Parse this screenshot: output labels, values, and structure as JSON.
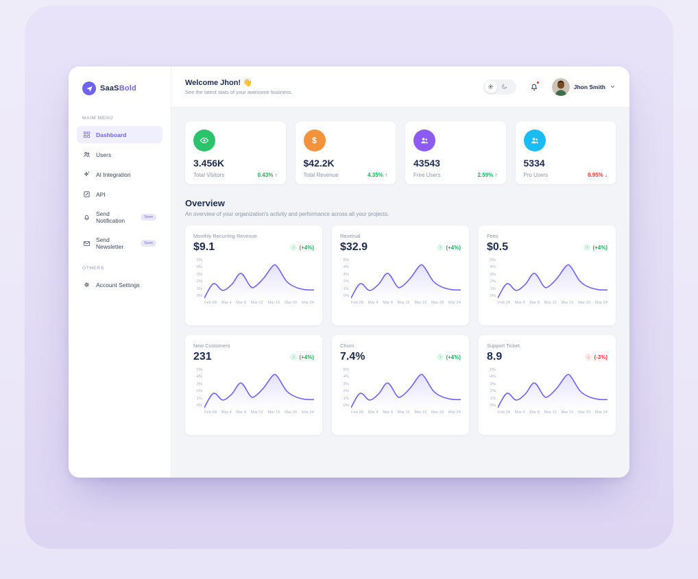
{
  "brand": {
    "name_bold": "SaaS",
    "name_light": "Bold"
  },
  "sidebar": {
    "section_main": "MAIM MENU",
    "section_others": "OTHERS",
    "items": [
      {
        "label": "Dashboard"
      },
      {
        "label": "Users"
      },
      {
        "label": "AI Integration"
      },
      {
        "label": "API"
      },
      {
        "label": "Send Notification",
        "badge": "Soon"
      },
      {
        "label": "Send Newsletter",
        "badge": "Soon"
      }
    ],
    "others_items": [
      {
        "label": "Account Settings"
      }
    ]
  },
  "header": {
    "welcome": "Welcome Jhon! 👋",
    "subtitle": "See the latest stats of your awesome business.",
    "user": {
      "name": "Jhon Smith"
    }
  },
  "stats": [
    {
      "value": "3.456K",
      "label": "Total Visitors",
      "change": "0.43%",
      "arrow": "↑",
      "trend": "up",
      "icon": "eye",
      "icon_color": "#2BC46C"
    },
    {
      "value": "$42.2K",
      "label": "Total Revenue",
      "change": "4.35%",
      "arrow": "↑",
      "trend": "up",
      "icon": "dollar",
      "icon_color": "#F2923A"
    },
    {
      "value": "43543",
      "label": "Free Users",
      "change": "2.59%",
      "arrow": "↑",
      "trend": "up",
      "icon": "users-group",
      "icon_color": "#8C5CF2"
    },
    {
      "value": "5334",
      "label": "Pro Users",
      "change": "0.95%",
      "arrow": "↓",
      "trend": "down",
      "icon": "users-group",
      "icon_color": "#1CBBF2"
    }
  ],
  "overview": {
    "title": "Overview",
    "subtitle": "An overview of your organization's activity and performance across all your projects."
  },
  "chart_colors": {
    "line": "#7266F0",
    "fill": "rgba(114,102,240,0.18)"
  },
  "chart_data": [
    {
      "type": "area",
      "title": "Monthly Recurring Revenue",
      "value": "$9.1",
      "change": "(+4%)",
      "arrow": "↑",
      "trend": "up",
      "x_ticks": [
        "Feb 28",
        "Mar 4",
        "Mar 8",
        "Mar 12",
        "Mar 16",
        "Mar 20",
        "Mar 24"
      ],
      "y_ticks": [
        "5%",
        "4%",
        "3%",
        "2%",
        "1%",
        "0%"
      ],
      "x_days": [
        0,
        2,
        4,
        6,
        8,
        10,
        11,
        13,
        15,
        16,
        18,
        20,
        22,
        24
      ],
      "values": [
        0.1,
        1.9,
        1.05,
        1.8,
        3.2,
        1.6,
        1.5,
        2.6,
        4.15,
        4.0,
        2.2,
        1.45,
        1.15,
        1.1
      ],
      "ylim": [
        0,
        5
      ]
    },
    {
      "type": "area",
      "title": "Reversal",
      "value": "$32.9",
      "change": "(+4%)",
      "arrow": "↑",
      "trend": "up",
      "x_ticks": [
        "Feb 28",
        "Mar 4",
        "Mar 8",
        "Mar 12",
        "Mar 16",
        "Mar 20",
        "Mar 24"
      ],
      "y_ticks": [
        "5%",
        "4%",
        "3%",
        "2%",
        "1%",
        "0%"
      ],
      "x_days": [
        0,
        2,
        4,
        6,
        8,
        10,
        11,
        13,
        15,
        16,
        18,
        20,
        22,
        24
      ],
      "values": [
        0.1,
        1.9,
        1.05,
        1.8,
        3.2,
        1.6,
        1.5,
        2.6,
        4.15,
        4.0,
        2.2,
        1.45,
        1.15,
        1.1
      ],
      "ylim": [
        0,
        5
      ]
    },
    {
      "type": "area",
      "title": "Fees",
      "value": "$0.5",
      "change": "(+4%)",
      "arrow": "↑",
      "trend": "up",
      "x_ticks": [
        "Feb 28",
        "Mar 4",
        "Mar 8",
        "Mar 12",
        "Mar 16",
        "Mar 20",
        "Mar 24"
      ],
      "y_ticks": [
        "5%",
        "4%",
        "3%",
        "2%",
        "1%",
        "0%"
      ],
      "x_days": [
        0,
        2,
        4,
        6,
        8,
        10,
        11,
        13,
        15,
        16,
        18,
        20,
        22,
        24
      ],
      "values": [
        0.1,
        1.9,
        1.05,
        1.8,
        3.2,
        1.6,
        1.5,
        2.6,
        4.15,
        4.0,
        2.2,
        1.45,
        1.15,
        1.1
      ],
      "ylim": [
        0,
        5
      ]
    },
    {
      "type": "area",
      "title": "New Customers",
      "value": "231",
      "change": "(+4%)",
      "arrow": "↑",
      "trend": "up",
      "x_ticks": [
        "Feb 28",
        "Mar 4",
        "Mar 8",
        "Mar 12",
        "Mar 16",
        "Mar 20",
        "Mar 24"
      ],
      "y_ticks": [
        "5%",
        "4%",
        "3%",
        "2%",
        "1%",
        "0%"
      ],
      "x_days": [
        0,
        2,
        4,
        6,
        8,
        10,
        11,
        13,
        15,
        16,
        18,
        20,
        22,
        24
      ],
      "values": [
        0.1,
        1.9,
        1.05,
        1.8,
        3.2,
        1.6,
        1.5,
        2.6,
        4.15,
        4.0,
        2.2,
        1.45,
        1.15,
        1.1
      ],
      "ylim": [
        0,
        5
      ]
    },
    {
      "type": "area",
      "title": "Churn",
      "value": "7.4%",
      "change": "(+4%)",
      "arrow": "↑",
      "trend": "up",
      "x_ticks": [
        "Feb 28",
        "Mar 4",
        "Mar 8",
        "Mar 12",
        "Mar 16",
        "Mar 20",
        "Mar 24"
      ],
      "y_ticks": [
        "5%",
        "4%",
        "3%",
        "2%",
        "1%",
        "0%"
      ],
      "x_days": [
        0,
        2,
        4,
        6,
        8,
        10,
        11,
        13,
        15,
        16,
        18,
        20,
        22,
        24
      ],
      "values": [
        0.1,
        1.9,
        1.05,
        1.8,
        3.2,
        1.6,
        1.5,
        2.6,
        4.15,
        4.0,
        2.2,
        1.45,
        1.15,
        1.1
      ],
      "ylim": [
        0,
        5
      ]
    },
    {
      "type": "area",
      "title": "Support Ticket",
      "value": "8.9",
      "change": "(-3%)",
      "arrow": "↓",
      "trend": "down",
      "x_ticks": [
        "Feb 28",
        "Mar 4",
        "Mar 8",
        "Mar 12",
        "Mar 16",
        "Mar 20",
        "Mar 24"
      ],
      "y_ticks": [
        "5%",
        "4%",
        "3%",
        "2%",
        "1%",
        "0%"
      ],
      "x_days": [
        0,
        2,
        4,
        6,
        8,
        10,
        11,
        13,
        15,
        16,
        18,
        20,
        22,
        24
      ],
      "values": [
        0.1,
        1.9,
        1.05,
        1.8,
        3.2,
        1.6,
        1.5,
        2.6,
        4.15,
        4.0,
        2.2,
        1.45,
        1.15,
        1.1
      ],
      "ylim": [
        0,
        5
      ]
    }
  ]
}
